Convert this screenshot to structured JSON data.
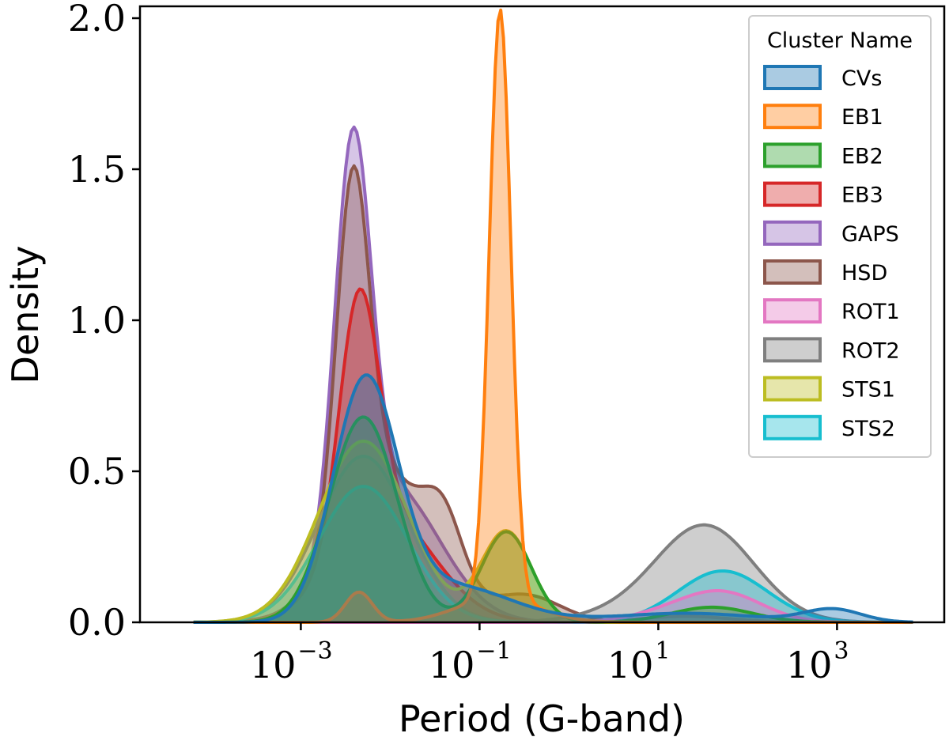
{
  "chart_data": {
    "type": "area",
    "subtype": "kde-density",
    "xlabel": "Period (G-band)",
    "ylabel": "Density",
    "xscale": "log10",
    "xlim_log10": [
      -4.8,
      4.2
    ],
    "ylim": [
      0.0,
      2.0
    ],
    "xticks": [
      {
        "log10": -3,
        "base": "10",
        "exp": "−3"
      },
      {
        "log10": -1,
        "base": "10",
        "exp": "−1"
      },
      {
        "log10": 1,
        "base": "10",
        "exp": "1"
      },
      {
        "log10": 3,
        "base": "10",
        "exp": "3"
      }
    ],
    "yticks": [
      {
        "value": 0.0,
        "label": "0.0"
      },
      {
        "value": 0.5,
        "label": "0.5"
      },
      {
        "value": 1.0,
        "label": "1.0"
      },
      {
        "value": 1.5,
        "label": "1.5"
      },
      {
        "value": 2.0,
        "label": "2.0"
      }
    ],
    "legend": {
      "title": "Cluster Name",
      "placement": "top-right"
    },
    "series": [
      {
        "name": "GAPS",
        "color": "#9467bd",
        "components": [
          {
            "mu": -2.42,
            "sigma": 0.2,
            "amp": 1.3
          },
          {
            "mu": -2.0,
            "sigma": 0.55,
            "amp": 0.45
          }
        ]
      },
      {
        "name": "HSD",
        "color": "#8c564b",
        "components": [
          {
            "mu": -2.42,
            "sigma": 0.18,
            "amp": 1.1
          },
          {
            "mu": -2.1,
            "sigma": 0.5,
            "amp": 0.5
          },
          {
            "mu": -1.4,
            "sigma": 0.22,
            "amp": 0.22
          },
          {
            "mu": -0.5,
            "sigma": 0.4,
            "amp": 0.09
          }
        ]
      },
      {
        "name": "EB3",
        "color": "#d62728",
        "components": [
          {
            "mu": -2.35,
            "sigma": 0.22,
            "amp": 0.8
          },
          {
            "mu": -2.05,
            "sigma": 0.55,
            "amp": 0.35
          },
          {
            "mu": 1.3,
            "sigma": 0.5,
            "amp": 0.02
          }
        ]
      },
      {
        "name": "ROT2",
        "color": "#7f7f7f",
        "components": [
          {
            "mu": 1.52,
            "sigma": 0.55,
            "amp": 0.32
          },
          {
            "mu": -2.3,
            "sigma": 0.5,
            "amp": 0.55
          },
          {
            "mu": 0.5,
            "sigma": 0.5,
            "amp": 0.02
          }
        ]
      },
      {
        "name": "STS2",
        "color": "#17becf",
        "components": [
          {
            "mu": 1.72,
            "sigma": 0.5,
            "amp": 0.17
          },
          {
            "mu": -2.3,
            "sigma": 0.5,
            "amp": 0.45
          }
        ]
      },
      {
        "name": "ROT1",
        "color": "#e377c2",
        "components": [
          {
            "mu": 1.7,
            "sigma": 0.45,
            "amp": 0.1
          },
          {
            "mu": 1.0,
            "sigma": 0.4,
            "amp": 0.02
          }
        ]
      },
      {
        "name": "STS1",
        "color": "#bcbd22",
        "components": [
          {
            "mu": -0.7,
            "sigma": 0.28,
            "amp": 0.3
          },
          {
            "mu": -2.3,
            "sigma": 0.5,
            "amp": 0.6
          }
        ]
      },
      {
        "name": "EB2",
        "color": "#2ca02c",
        "components": [
          {
            "mu": -2.3,
            "sigma": 0.38,
            "amp": 0.68
          },
          {
            "mu": -0.7,
            "sigma": 0.28,
            "amp": 0.3
          },
          {
            "mu": 1.6,
            "sigma": 0.45,
            "amp": 0.05
          }
        ]
      },
      {
        "name": "EB1",
        "color": "#ff7f0e",
        "components": [
          {
            "mu": -0.77,
            "sigma": 0.12,
            "amp": 1.95
          },
          {
            "mu": -2.35,
            "sigma": 0.15,
            "amp": 0.1
          },
          {
            "mu": -0.8,
            "sigma": 0.45,
            "amp": 0.08
          }
        ]
      },
      {
        "name": "CVs",
        "color": "#1f77b4",
        "components": [
          {
            "mu": -2.28,
            "sigma": 0.36,
            "amp": 0.78
          },
          {
            "mu": -1.3,
            "sigma": 0.65,
            "amp": 0.12
          },
          {
            "mu": 2.95,
            "sigma": 0.32,
            "amp": 0.042
          },
          {
            "mu": 1.3,
            "sigma": 0.8,
            "amp": 0.03
          }
        ]
      }
    ],
    "legend_order": [
      "CVs",
      "EB1",
      "EB2",
      "EB3",
      "GAPS",
      "HSD",
      "ROT1",
      "ROT2",
      "STS1",
      "STS2"
    ]
  }
}
